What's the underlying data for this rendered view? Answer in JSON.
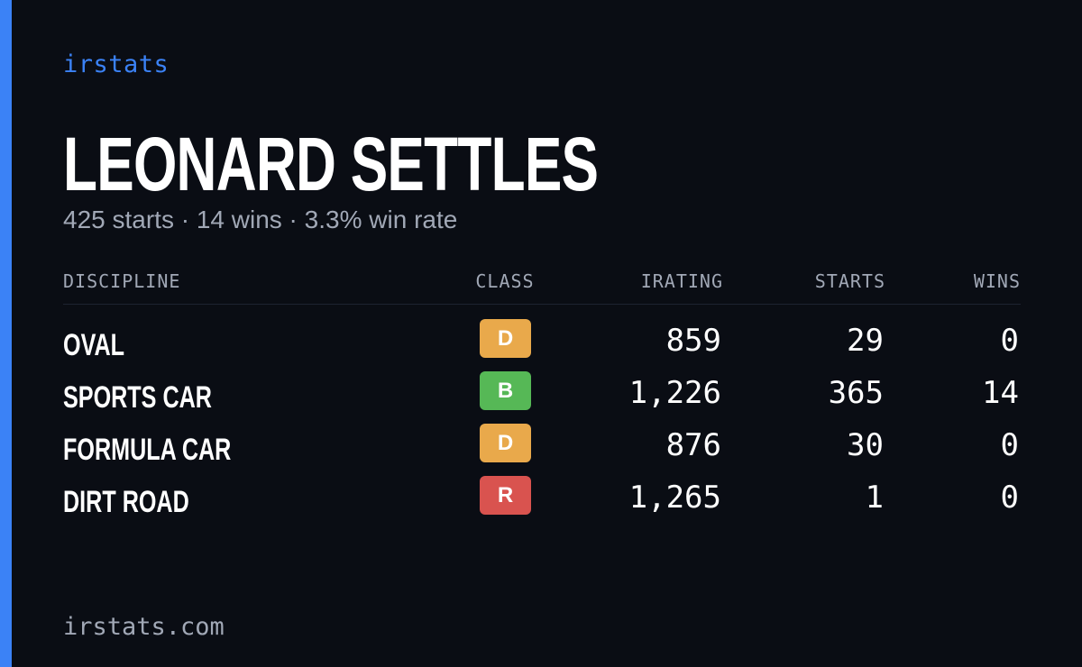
{
  "brand": "irstats",
  "player": {
    "name": "LEONARD SETTLES",
    "starts": "425 starts",
    "wins": "14 wins",
    "win_rate": "3.3% win rate",
    "separator": " · "
  },
  "table": {
    "headers": {
      "discipline": "DISCIPLINE",
      "class": "CLASS",
      "irating": "IRATING",
      "starts": "STARTS",
      "wins": "WINS"
    },
    "rows": [
      {
        "discipline": "OVAL",
        "class": "D",
        "class_color": "#e9a94b",
        "irating": "859",
        "starts": "29",
        "wins": "0"
      },
      {
        "discipline": "SPORTS CAR",
        "class": "B",
        "class_color": "#56b856",
        "irating": "1,226",
        "starts": "365",
        "wins": "14"
      },
      {
        "discipline": "FORMULA CAR",
        "class": "D",
        "class_color": "#e9a94b",
        "irating": "876",
        "starts": "30",
        "wins": "0"
      },
      {
        "discipline": "DIRT ROAD",
        "class": "R",
        "class_color": "#d9534f",
        "irating": "1,265",
        "starts": "1",
        "wins": "0"
      }
    ]
  },
  "footer": {
    "domain": "irstats.com"
  },
  "colors": {
    "accent": "#3b82f6",
    "background": "#0a0d14",
    "muted": "#a1a8b6"
  }
}
